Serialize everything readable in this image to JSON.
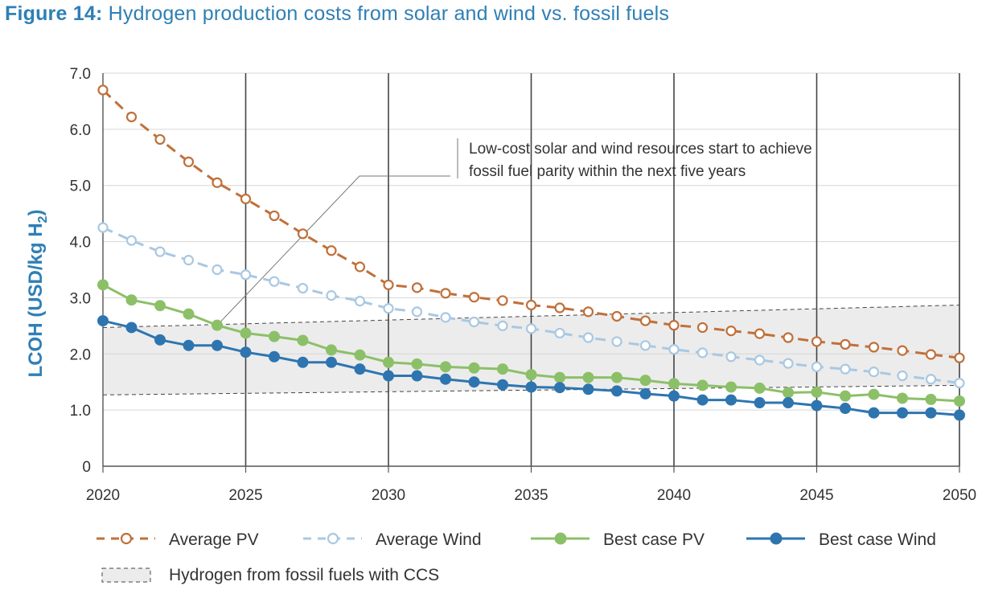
{
  "figure": {
    "number": "Figure 14:",
    "title": "Hydrogen production costs from solar and wind vs. fossil fuels"
  },
  "chart_data": {
    "type": "line",
    "title": "Hydrogen production costs from solar and wind vs. fossil fuels",
    "ylabel": "LCOH (USD/kg H",
    "ylabel_subscript": "2",
    "ylabel_close": ")",
    "xlabel": "",
    "xlim": [
      2020,
      2050
    ],
    "ylim": [
      0,
      7
    ],
    "x_ticks": [
      2020,
      2025,
      2030,
      2035,
      2040,
      2045,
      2050
    ],
    "y_ticks": [
      {
        "value": 0,
        "label": "0"
      },
      {
        "value": 1,
        "label": "1.0"
      },
      {
        "value": 2,
        "label": "2.0"
      },
      {
        "value": 3,
        "label": "3.0"
      },
      {
        "value": 4,
        "label": "4.0"
      },
      {
        "value": 5,
        "label": "5.0"
      },
      {
        "value": 6,
        "label": "6.0"
      },
      {
        "value": 7,
        "label": "7.0"
      }
    ],
    "grid": {
      "horizontal": true,
      "vertical_major": true
    },
    "legend_position": "bottom",
    "x": [
      2020,
      2021,
      2022,
      2023,
      2024,
      2025,
      2026,
      2027,
      2028,
      2029,
      2030,
      2031,
      2032,
      2033,
      2034,
      2035,
      2036,
      2037,
      2038,
      2039,
      2040,
      2041,
      2042,
      2043,
      2044,
      2045,
      2046,
      2047,
      2048,
      2049,
      2050
    ],
    "series": [
      {
        "name": "Average PV",
        "color": "#c0703a",
        "style": "dashed",
        "marker": "hollow",
        "values": [
          6.7,
          6.22,
          5.82,
          5.42,
          5.05,
          4.76,
          4.46,
          4.14,
          3.84,
          3.55,
          3.23,
          3.18,
          3.08,
          3.01,
          2.95,
          2.87,
          2.82,
          2.75,
          2.67,
          2.59,
          2.51,
          2.47,
          2.41,
          2.36,
          2.29,
          2.22,
          2.17,
          2.12,
          2.06,
          1.99,
          1.93
        ]
      },
      {
        "name": "Average Wind",
        "color": "#a9c8e2",
        "style": "dashed",
        "marker": "hollow",
        "values": [
          4.25,
          4.02,
          3.82,
          3.67,
          3.5,
          3.41,
          3.29,
          3.17,
          3.04,
          2.94,
          2.81,
          2.75,
          2.65,
          2.57,
          2.5,
          2.45,
          2.37,
          2.29,
          2.22,
          2.15,
          2.08,
          2.02,
          1.95,
          1.89,
          1.83,
          1.77,
          1.73,
          1.68,
          1.61,
          1.55,
          1.48
        ]
      },
      {
        "name": "Best case PV",
        "color": "#8cc068",
        "style": "solid",
        "marker": "filled",
        "values": [
          3.23,
          2.96,
          2.86,
          2.71,
          2.51,
          2.37,
          2.31,
          2.24,
          2.07,
          1.98,
          1.85,
          1.82,
          1.77,
          1.75,
          1.73,
          1.63,
          1.58,
          1.58,
          1.58,
          1.53,
          1.47,
          1.44,
          1.41,
          1.39,
          1.31,
          1.32,
          1.25,
          1.28,
          1.21,
          1.19,
          1.16
        ]
      },
      {
        "name": "Best case Wind",
        "color": "#2e75b0",
        "style": "solid",
        "marker": "filled",
        "values": [
          2.59,
          2.47,
          2.25,
          2.15,
          2.15,
          2.03,
          1.95,
          1.85,
          1.85,
          1.73,
          1.61,
          1.61,
          1.55,
          1.5,
          1.45,
          1.41,
          1.4,
          1.37,
          1.34,
          1.29,
          1.25,
          1.18,
          1.18,
          1.13,
          1.13,
          1.08,
          1.03,
          0.95,
          0.95,
          0.95,
          0.91
        ]
      }
    ],
    "band": {
      "name": "Hydrogen from fossil fuels with CCS",
      "color": "#ececec",
      "x": [
        2020,
        2050
      ],
      "upper": [
        2.47,
        2.87
      ],
      "lower": [
        1.27,
        1.44
      ]
    },
    "annotation": {
      "lines": [
        "Low-cost solar and wind resources start to achieve",
        "fossil fuel parity within the next five years"
      ],
      "points_to": {
        "x": 2024,
        "y": 2.51
      }
    }
  }
}
